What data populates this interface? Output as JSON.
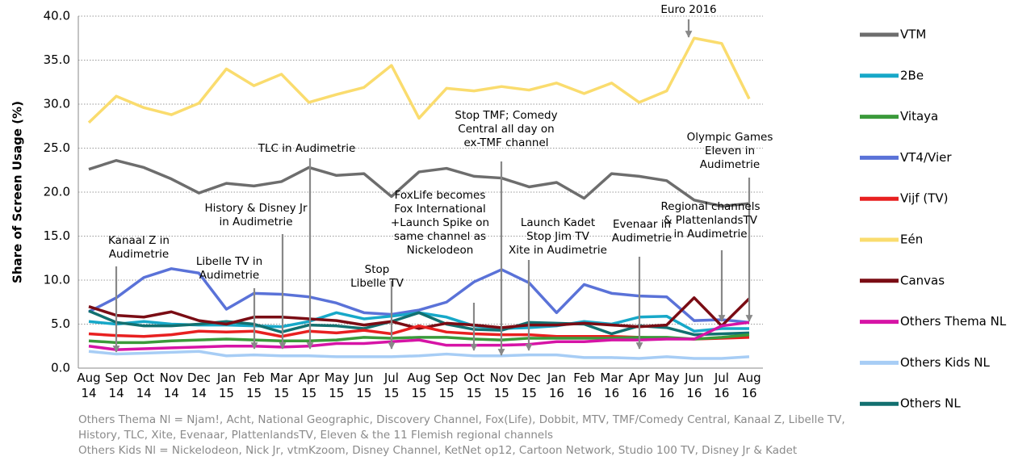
{
  "chart_data": {
    "type": "line",
    "ylabel": "Share of Screen Usage (%)",
    "categories": [
      "Aug 14",
      "Sep 14",
      "Oct 14",
      "Nov 14",
      "Dec 14",
      "Jan 15",
      "Feb 15",
      "Mar 15",
      "Apr 15",
      "May 15",
      "Jun 15",
      "Jul 15",
      "Aug 15",
      "Sep 15",
      "Oct 15",
      "Nov 15",
      "Dec 15",
      "Jan 16",
      "Feb 16",
      "Mar 16",
      "Apr 16",
      "May 16",
      "Jun 16",
      "Jul 16",
      "Aug 16"
    ],
    "ylim": [
      0,
      40
    ],
    "yticks": [
      {
        "value": 0,
        "label": "0.0"
      },
      {
        "value": 5,
        "label": "5.0"
      },
      {
        "value": 10,
        "label": "10.0"
      },
      {
        "value": 15,
        "label": "15.0"
      },
      {
        "value": 20,
        "label": "20.0"
      },
      {
        "value": 25,
        "label": "25.0"
      },
      {
        "value": 30,
        "label": "30.0"
      },
      {
        "value": 35,
        "label": "35.0"
      },
      {
        "value": 40,
        "label": "40.0"
      }
    ],
    "grid": true,
    "series": [
      {
        "name": "VTM",
        "color": "#6d6d6d",
        "values": [
          22.6,
          23.6,
          22.8,
          21.5,
          19.9,
          21.0,
          20.7,
          21.2,
          22.8,
          21.9,
          22.1,
          19.5,
          22.3,
          22.7,
          21.8,
          21.6,
          20.6,
          21.1,
          19.3,
          22.1,
          21.8,
          21.3,
          19.1,
          18.4,
          18.7
        ]
      },
      {
        "name": "2Be",
        "color": "#17a8c8",
        "values": [
          5.3,
          5.0,
          5.3,
          5.0,
          4.9,
          4.9,
          4.8,
          4.7,
          5.3,
          6.3,
          5.6,
          5.9,
          6.3,
          5.8,
          4.8,
          4.5,
          4.6,
          4.8,
          5.3,
          5.0,
          5.8,
          5.9,
          4.2,
          4.5,
          4.5
        ]
      },
      {
        "name": "Vitaya",
        "color": "#3a9a3a",
        "values": [
          3.1,
          2.9,
          2.9,
          3.1,
          3.2,
          3.3,
          3.2,
          3.1,
          3.1,
          3.2,
          3.5,
          3.4,
          3.5,
          3.5,
          3.3,
          3.2,
          3.4,
          3.4,
          3.4,
          3.4,
          3.5,
          3.5,
          3.3,
          3.5,
          3.8
        ]
      },
      {
        "name": "VT4/Vier",
        "color": "#5a72d8",
        "values": [
          6.4,
          8.0,
          10.3,
          11.3,
          10.8,
          6.7,
          8.5,
          8.4,
          8.1,
          7.4,
          6.3,
          6.1,
          6.6,
          7.5,
          9.8,
          11.2,
          9.7,
          6.3,
          9.5,
          8.5,
          8.2,
          8.1,
          5.4,
          5.5,
          5.2
        ]
      },
      {
        "name": "Vijf (TV)",
        "color": "#e82020",
        "values": [
          3.9,
          3.7,
          3.6,
          3.8,
          4.2,
          4.1,
          4.2,
          3.6,
          4.2,
          4.0,
          4.3,
          3.9,
          4.8,
          4.1,
          3.9,
          3.8,
          3.8,
          3.6,
          3.6,
          3.6,
          3.5,
          3.4,
          3.3,
          3.4,
          3.5
        ]
      },
      {
        "name": "Eén",
        "color": "#fadc6e",
        "values": [
          27.9,
          30.9,
          29.6,
          28.8,
          30.1,
          34.0,
          32.1,
          33.4,
          30.2,
          31.1,
          31.9,
          34.4,
          28.4,
          31.8,
          31.5,
          32.0,
          31.6,
          32.4,
          31.2,
          32.4,
          30.2,
          31.5,
          37.5,
          36.9,
          30.6
        ]
      },
      {
        "name": "Canvas",
        "color": "#7a0c14",
        "values": [
          7.0,
          6.0,
          5.8,
          6.4,
          5.4,
          5.0,
          5.8,
          5.8,
          5.6,
          5.4,
          4.9,
          5.3,
          4.5,
          5.1,
          4.9,
          4.6,
          4.9,
          4.9,
          5.1,
          4.9,
          4.7,
          4.9,
          8.0,
          4.8,
          7.9
        ]
      },
      {
        "name": "Others Thema NL",
        "color": "#d614a6",
        "values": [
          2.5,
          2.1,
          2.2,
          2.3,
          2.4,
          2.5,
          2.5,
          2.4,
          2.5,
          2.8,
          2.8,
          3.0,
          3.2,
          2.6,
          2.6,
          2.6,
          2.7,
          3.0,
          3.0,
          3.2,
          3.2,
          3.3,
          3.3,
          4.8,
          5.2
        ]
      },
      {
        "name": "Others Kids NL",
        "color": "#a7cdf5",
        "values": [
          1.9,
          1.6,
          1.7,
          1.8,
          1.9,
          1.4,
          1.5,
          1.4,
          1.4,
          1.3,
          1.3,
          1.3,
          1.4,
          1.6,
          1.4,
          1.4,
          1.5,
          1.5,
          1.2,
          1.2,
          1.1,
          1.3,
          1.1,
          1.1,
          1.3
        ]
      },
      {
        "name": "Others NL",
        "color": "#127070",
        "values": [
          6.5,
          5.2,
          4.8,
          4.8,
          5.0,
          5.3,
          5.0,
          4.1,
          4.9,
          4.8,
          4.5,
          5.3,
          6.3,
          5.0,
          4.4,
          4.3,
          5.2,
          5.1,
          5.0,
          3.9,
          4.8,
          4.6,
          3.8,
          3.9,
          4.0
        ]
      }
    ],
    "annotations": [
      "Euro 2016",
      "Olympic Games\nEleven in\nAudimetrie",
      "Regional channels\n& PlattenlandsTV\nin Audimetrie",
      "Stop TMF; Comedy\nCentral all day on\nex-TMF channel",
      "TLC in Audimetrie",
      "History & Disney Jr\nin Audimetrie",
      "Libelle TV in\nAudimetrie",
      "Kanaal Z in\nAudimetrie",
      "Stop\nLibelle TV",
      "FoxLife becomes\nFox International\n+Launch Spike on\nsame channel as\nNickelodeon",
      "Launch Kadet\nStop Jim TV\nXite in Audimetrie",
      "Evenaar in\nAudimetrie"
    ],
    "footnotes": [
      "Others Thema Nl = Njam!, Acht, National Geographic, Discovery Channel, Fox(Life), Dobbit, MTV, TMF/Comedy Central, Kanaal Z, Libelle TV,",
      "History, TLC, Xite, Evenaar, PlattenlandsTV, Eleven & the 11 Flemish regional channels",
      "Others Kids Nl = Nickelodeon, Nick Jr, vtmKzoom, Disney Channel, KetNet op12, Cartoon Network, Studio 100 TV, Disney Jr & Kadet"
    ]
  }
}
